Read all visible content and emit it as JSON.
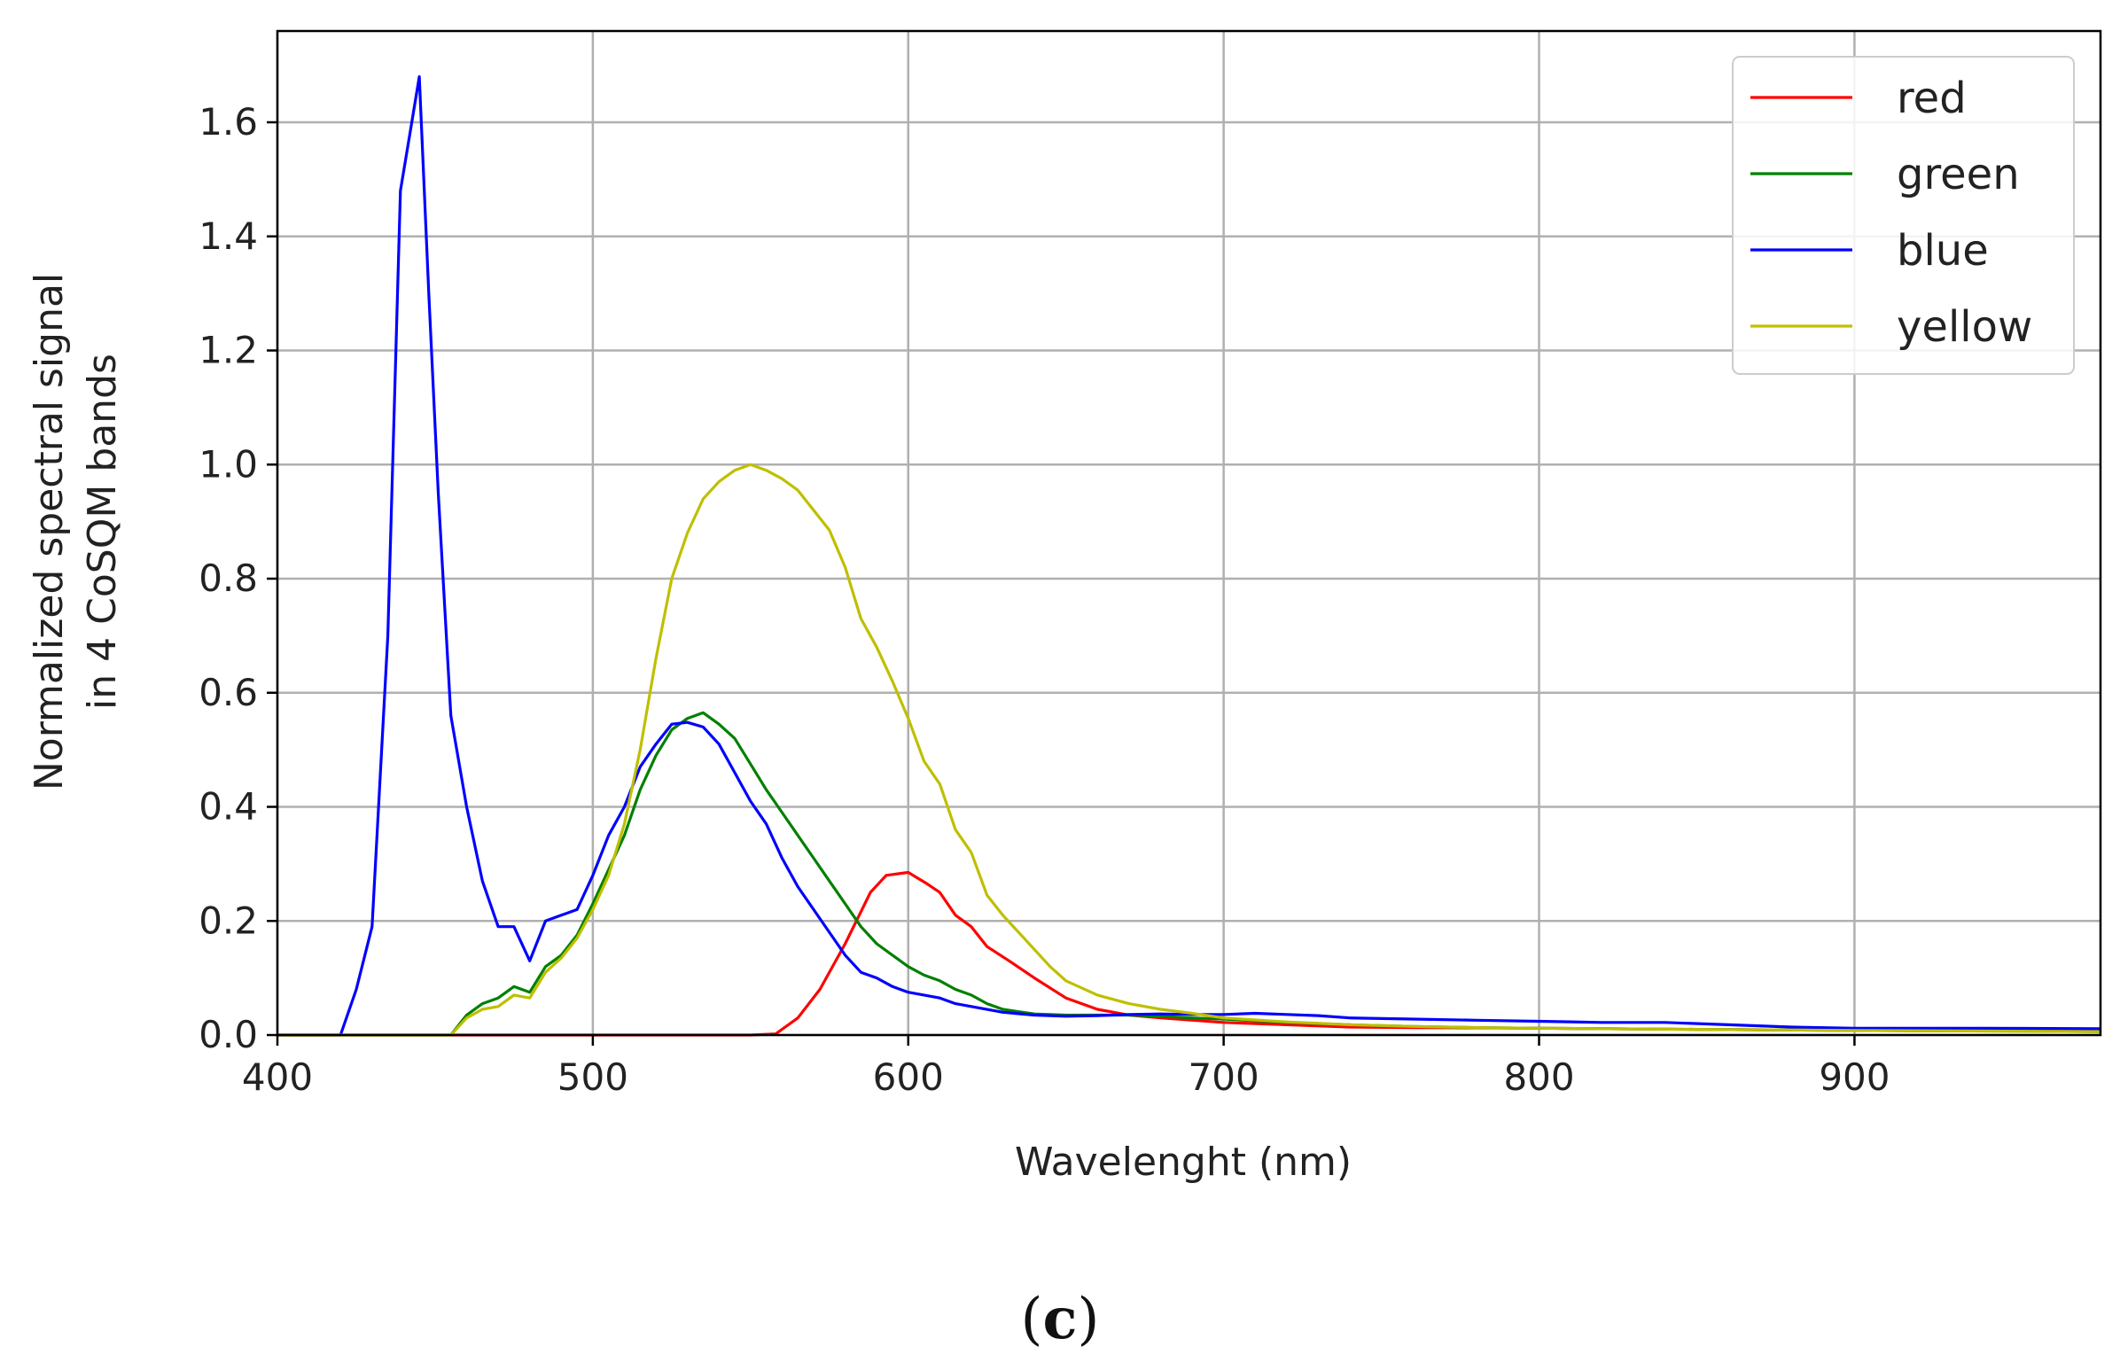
{
  "chart_data": {
    "type": "line",
    "xlabel": "Wavelenght (nm)",
    "ylabel_line1": "Normalized spectral signal",
    "ylabel_line2": "in 4 CoSQM bands",
    "xlim": [
      400,
      978
    ],
    "ylim": [
      0,
      1.76
    ],
    "x_ticks": [
      400,
      500,
      600,
      700,
      800,
      900
    ],
    "y_ticks": [
      0.0,
      0.2,
      0.4,
      0.6,
      0.8,
      1.0,
      1.2,
      1.4,
      1.6
    ],
    "x_tick_labels": [
      "400",
      "500",
      "600",
      "700",
      "800",
      "900"
    ],
    "y_tick_labels": [
      "0.0",
      "0.2",
      "0.4",
      "0.6",
      "0.8",
      "1.0",
      "1.2",
      "1.4",
      "1.6"
    ],
    "grid": true,
    "legend_position": "top-right",
    "series": [
      {
        "name": "red",
        "color": "#ff0000",
        "points": [
          [
            400,
            0
          ],
          [
            550,
            0
          ],
          [
            558,
            0.002
          ],
          [
            565,
            0.03
          ],
          [
            572,
            0.08
          ],
          [
            580,
            0.16
          ],
          [
            588,
            0.25
          ],
          [
            593,
            0.28
          ],
          [
            600,
            0.285
          ],
          [
            606,
            0.265
          ],
          [
            610,
            0.25
          ],
          [
            615,
            0.21
          ],
          [
            620,
            0.19
          ],
          [
            625,
            0.155
          ],
          [
            632,
            0.13
          ],
          [
            640,
            0.1
          ],
          [
            650,
            0.065
          ],
          [
            660,
            0.045
          ],
          [
            670,
            0.035
          ],
          [
            680,
            0.03
          ],
          [
            700,
            0.022
          ],
          [
            720,
            0.018
          ],
          [
            740,
            0.014
          ],
          [
            760,
            0.013
          ],
          [
            800,
            0.012
          ],
          [
            850,
            0.01
          ],
          [
            900,
            0.008
          ],
          [
            978,
            0.007
          ]
        ]
      },
      {
        "name": "green",
        "color": "#008000",
        "points": [
          [
            400,
            0
          ],
          [
            455,
            0
          ],
          [
            460,
            0.035
          ],
          [
            465,
            0.055
          ],
          [
            470,
            0.065
          ],
          [
            475,
            0.085
          ],
          [
            480,
            0.075
          ],
          [
            485,
            0.12
          ],
          [
            490,
            0.14
          ],
          [
            495,
            0.175
          ],
          [
            500,
            0.23
          ],
          [
            505,
            0.29
          ],
          [
            510,
            0.35
          ],
          [
            515,
            0.43
          ],
          [
            520,
            0.49
          ],
          [
            525,
            0.535
          ],
          [
            530,
            0.555
          ],
          [
            535,
            0.565
          ],
          [
            540,
            0.545
          ],
          [
            545,
            0.52
          ],
          [
            550,
            0.475
          ],
          [
            555,
            0.43
          ],
          [
            560,
            0.39
          ],
          [
            565,
            0.35
          ],
          [
            570,
            0.31
          ],
          [
            575,
            0.27
          ],
          [
            580,
            0.23
          ],
          [
            585,
            0.19
          ],
          [
            590,
            0.16
          ],
          [
            595,
            0.14
          ],
          [
            600,
            0.12
          ],
          [
            605,
            0.105
          ],
          [
            610,
            0.095
          ],
          [
            615,
            0.08
          ],
          [
            620,
            0.07
          ],
          [
            625,
            0.055
          ],
          [
            630,
            0.045
          ],
          [
            640,
            0.037
          ],
          [
            650,
            0.035
          ],
          [
            660,
            0.035
          ],
          [
            670,
            0.035
          ],
          [
            680,
            0.033
          ],
          [
            690,
            0.03
          ],
          [
            700,
            0.028
          ],
          [
            720,
            0.022
          ],
          [
            740,
            0.018
          ],
          [
            760,
            0.015
          ],
          [
            780,
            0.013
          ],
          [
            800,
            0.012
          ],
          [
            850,
            0.01
          ],
          [
            900,
            0.008
          ],
          [
            978,
            0.006
          ]
        ]
      },
      {
        "name": "blue",
        "color": "#0000ff",
        "points": [
          [
            400,
            0
          ],
          [
            420,
            0
          ],
          [
            425,
            0.08
          ],
          [
            430,
            0.19
          ],
          [
            435,
            0.7
          ],
          [
            439,
            1.48
          ],
          [
            442,
            1.58
          ],
          [
            445,
            1.68
          ],
          [
            448,
            1.3
          ],
          [
            451,
            0.95
          ],
          [
            455,
            0.56
          ],
          [
            460,
            0.4
          ],
          [
            465,
            0.27
          ],
          [
            470,
            0.19
          ],
          [
            475,
            0.19
          ],
          [
            480,
            0.13
          ],
          [
            485,
            0.2
          ],
          [
            490,
            0.21
          ],
          [
            495,
            0.22
          ],
          [
            500,
            0.28
          ],
          [
            505,
            0.35
          ],
          [
            510,
            0.4
          ],
          [
            515,
            0.47
          ],
          [
            520,
            0.51
          ],
          [
            525,
            0.545
          ],
          [
            530,
            0.548
          ],
          [
            535,
            0.54
          ],
          [
            540,
            0.51
          ],
          [
            545,
            0.46
          ],
          [
            550,
            0.41
          ],
          [
            555,
            0.37
          ],
          [
            560,
            0.31
          ],
          [
            565,
            0.26
          ],
          [
            570,
            0.22
          ],
          [
            575,
            0.18
          ],
          [
            580,
            0.14
          ],
          [
            585,
            0.11
          ],
          [
            590,
            0.1
          ],
          [
            595,
            0.085
          ],
          [
            600,
            0.075
          ],
          [
            605,
            0.07
          ],
          [
            610,
            0.065
          ],
          [
            615,
            0.055
          ],
          [
            620,
            0.05
          ],
          [
            630,
            0.04
          ],
          [
            640,
            0.035
          ],
          [
            650,
            0.033
          ],
          [
            660,
            0.034
          ],
          [
            670,
            0.036
          ],
          [
            680,
            0.037
          ],
          [
            690,
            0.036
          ],
          [
            700,
            0.036
          ],
          [
            710,
            0.038
          ],
          [
            720,
            0.036
          ],
          [
            730,
            0.034
          ],
          [
            740,
            0.03
          ],
          [
            760,
            0.028
          ],
          [
            780,
            0.026
          ],
          [
            800,
            0.024
          ],
          [
            820,
            0.022
          ],
          [
            840,
            0.022
          ],
          [
            860,
            0.018
          ],
          [
            880,
            0.014
          ],
          [
            900,
            0.012
          ],
          [
            940,
            0.012
          ],
          [
            978,
            0.011
          ]
        ]
      },
      {
        "name": "yellow",
        "color": "#bfbf00",
        "points": [
          [
            400,
            0
          ],
          [
            455,
            0
          ],
          [
            460,
            0.03
          ],
          [
            465,
            0.045
          ],
          [
            470,
            0.05
          ],
          [
            475,
            0.07
          ],
          [
            480,
            0.065
          ],
          [
            485,
            0.11
          ],
          [
            490,
            0.135
          ],
          [
            495,
            0.17
          ],
          [
            500,
            0.22
          ],
          [
            505,
            0.28
          ],
          [
            510,
            0.37
          ],
          [
            515,
            0.5
          ],
          [
            520,
            0.66
          ],
          [
            525,
            0.8
          ],
          [
            530,
            0.88
          ],
          [
            535,
            0.94
          ],
          [
            540,
            0.97
          ],
          [
            545,
            0.99
          ],
          [
            550,
            1.0
          ],
          [
            555,
            0.99
          ],
          [
            560,
            0.975
          ],
          [
            565,
            0.955
          ],
          [
            570,
            0.92
          ],
          [
            575,
            0.885
          ],
          [
            580,
            0.82
          ],
          [
            585,
            0.73
          ],
          [
            590,
            0.68
          ],
          [
            595,
            0.62
          ],
          [
            600,
            0.555
          ],
          [
            605,
            0.48
          ],
          [
            610,
            0.44
          ],
          [
            615,
            0.36
          ],
          [
            620,
            0.32
          ],
          [
            625,
            0.245
          ],
          [
            630,
            0.21
          ],
          [
            635,
            0.18
          ],
          [
            640,
            0.15
          ],
          [
            645,
            0.12
          ],
          [
            650,
            0.095
          ],
          [
            660,
            0.07
          ],
          [
            670,
            0.055
          ],
          [
            680,
            0.045
          ],
          [
            690,
            0.038
          ],
          [
            700,
            0.03
          ],
          [
            720,
            0.023
          ],
          [
            740,
            0.018
          ],
          [
            760,
            0.015
          ],
          [
            780,
            0.013
          ],
          [
            800,
            0.012
          ],
          [
            850,
            0.01
          ],
          [
            900,
            0.008
          ],
          [
            978,
            0.006
          ]
        ]
      }
    ]
  },
  "figure": {
    "panel_label_open": "(",
    "panel_label_letter": "c",
    "panel_label_close": ")"
  }
}
